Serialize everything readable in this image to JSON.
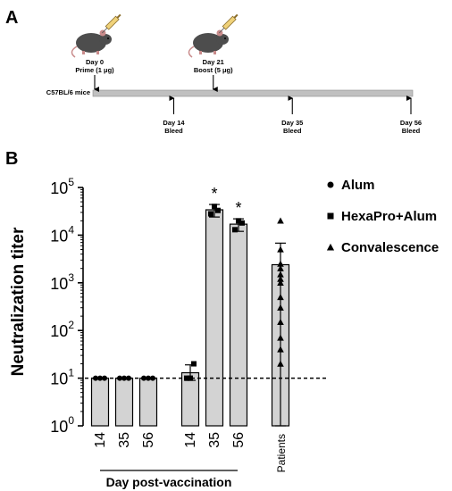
{
  "panel_a": {
    "letter": "A",
    "mouse_strain": "C57BL/6 mice",
    "top_events": [
      {
        "day": "Day 0",
        "label": "Prime (1 μg)",
        "t": 0
      },
      {
        "day": "Day 21",
        "label": "Boost (5 μg)",
        "t": 21
      }
    ],
    "bottom_events": [
      {
        "day": "Day 14",
        "label": "Bleed",
        "t": 14
      },
      {
        "day": "Day 35",
        "label": "Bleed",
        "t": 35
      },
      {
        "day": "Day 56",
        "label": "Bleed",
        "t": 56
      }
    ],
    "timeline_range": [
      0,
      56
    ]
  },
  "panel_b": {
    "letter": "B"
  },
  "chart_data": {
    "type": "bar",
    "ylabel": "Neutralization titer",
    "xlabel": "Day post-vaccination",
    "yscale": "log",
    "ylim": [
      1,
      100000
    ],
    "yticks": [
      {
        "base": "10",
        "exp": "0"
      },
      {
        "base": "10",
        "exp": "1"
      },
      {
        "base": "10",
        "exp": "2"
      },
      {
        "base": "10",
        "exp": "3"
      },
      {
        "base": "10",
        "exp": "4"
      },
      {
        "base": "10",
        "exp": "5"
      }
    ],
    "reference_line": 10,
    "categories": [
      "14",
      "35",
      "56",
      "14",
      "35",
      "56",
      "Patients"
    ],
    "groups": [
      {
        "series": "Alum",
        "values": [
          10,
          10,
          10
        ],
        "marker": "circle"
      },
      {
        "series": "HexaPro+Alum",
        "values": [
          13,
          34000,
          17000
        ],
        "err_low": [
          9,
          24000,
          12000
        ],
        "err_high": [
          19,
          44000,
          22000
        ],
        "points": [
          [
            10,
            10,
            20
          ],
          [
            28000,
            40000,
            33000
          ],
          [
            13000,
            20000,
            18000
          ]
        ],
        "significance": [
          "",
          "*",
          "*"
        ],
        "marker": "square"
      },
      {
        "series": "Convalescence",
        "values": [
          2400
        ],
        "err_low": [
          1
        ],
        "err_high": [
          6800
        ],
        "points": [
          [
            20000,
            5000,
            2500,
            2000,
            1500,
            1200,
            1000,
            500,
            300,
            150,
            70,
            40,
            20
          ]
        ],
        "marker": "triangle"
      }
    ],
    "legend": {
      "position": "right",
      "entries": [
        {
          "name": "Alum",
          "marker": "circle"
        },
        {
          "name": "HexaPro+Alum",
          "marker": "square"
        },
        {
          "name": "Convalescence",
          "marker": "triangle"
        }
      ]
    },
    "bar_color": "#d3d3d3",
    "grid": false
  }
}
